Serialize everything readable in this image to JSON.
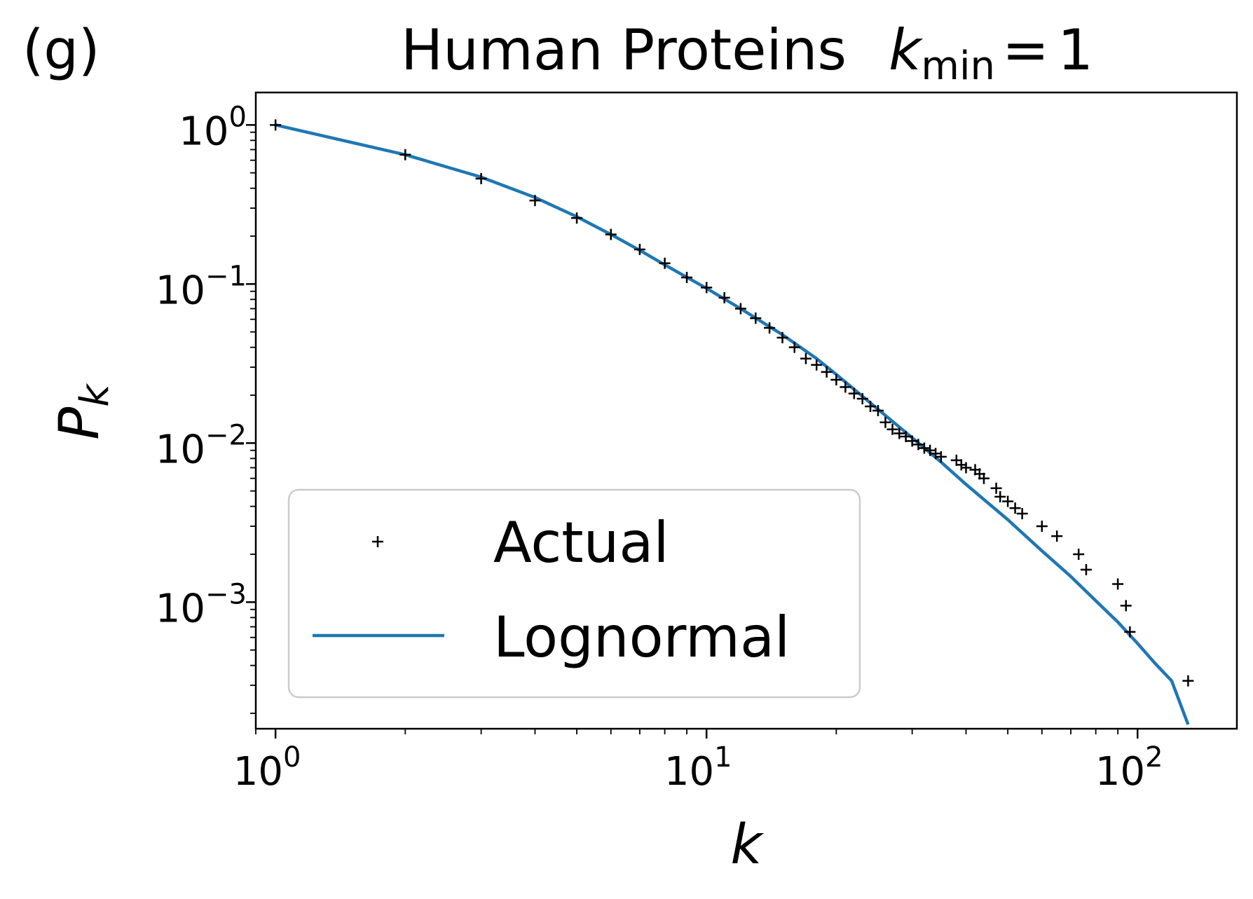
{
  "panel_label": "(g)",
  "title": {
    "text": "Human Proteins",
    "variable": "k",
    "subscript": "min",
    "equals": "=",
    "value": "1"
  },
  "chart_data": {
    "type": "scatter",
    "xlabel": "k",
    "ylabel_main": "P",
    "ylabel_sub": "k",
    "xscale": "log",
    "yscale": "log",
    "xlim": [
      0.9,
      170
    ],
    "ylim": [
      0.00016,
      1.6
    ],
    "x_ticks": [
      {
        "value": 1,
        "base": "10",
        "exp": "0"
      },
      {
        "value": 10,
        "base": "10",
        "exp": "1"
      },
      {
        "value": 100,
        "base": "10",
        "exp": "2"
      }
    ],
    "y_ticks": [
      {
        "value": 1,
        "base": "10",
        "exp": "0"
      },
      {
        "value": 0.1,
        "base": "10",
        "exp": "−1"
      },
      {
        "value": 0.01,
        "base": "10",
        "exp": "−2"
      },
      {
        "value": 0.001,
        "base": "10",
        "exp": "−3"
      }
    ],
    "grid": false,
    "legend_position": "lower-left",
    "series": [
      {
        "name": "Actual",
        "kind": "scatter",
        "marker": "plus",
        "color": "#000000",
        "x": [
          1,
          2,
          3,
          4,
          5,
          6,
          7,
          8,
          9,
          10,
          11,
          12,
          13,
          14,
          15,
          16,
          17,
          18,
          19,
          20,
          21,
          22,
          23,
          24,
          25,
          26,
          27,
          28,
          29,
          30,
          31,
          32,
          33,
          34,
          35,
          38,
          39,
          40,
          42,
          43,
          44,
          47,
          48,
          50,
          52,
          54,
          60,
          65,
          73,
          76,
          90,
          94,
          96,
          131
        ],
        "y": [
          1.0,
          0.65,
          0.46,
          0.335,
          0.26,
          0.205,
          0.165,
          0.135,
          0.11,
          0.095,
          0.082,
          0.07,
          0.061,
          0.053,
          0.046,
          0.04,
          0.034,
          0.031,
          0.028,
          0.025,
          0.0225,
          0.0205,
          0.019,
          0.017,
          0.016,
          0.0135,
          0.0122,
          0.0115,
          0.011,
          0.0103,
          0.0098,
          0.0093,
          0.009,
          0.0086,
          0.0082,
          0.0078,
          0.0073,
          0.007,
          0.0068,
          0.0064,
          0.006,
          0.0052,
          0.0046,
          0.0043,
          0.0039,
          0.0036,
          0.003,
          0.0026,
          0.002,
          0.0016,
          0.0013,
          0.00095,
          0.00065,
          0.00032
        ]
      },
      {
        "name": "Lognormal",
        "kind": "line",
        "color": "#1f77b4",
        "x": [
          1,
          2,
          3,
          4,
          5,
          6,
          7,
          8,
          10,
          12,
          15,
          18,
          20,
          25,
          30,
          35,
          40,
          50,
          60,
          70,
          80,
          90,
          100,
          110,
          120,
          131
        ],
        "y": [
          1.0,
          0.65,
          0.47,
          0.35,
          0.265,
          0.205,
          0.163,
          0.132,
          0.094,
          0.07,
          0.048,
          0.034,
          0.027,
          0.0163,
          0.0108,
          0.0076,
          0.0055,
          0.0033,
          0.0021,
          0.00145,
          0.00102,
          0.00075,
          0.00055,
          0.00041,
          0.00032,
          0.00017
        ]
      }
    ]
  }
}
